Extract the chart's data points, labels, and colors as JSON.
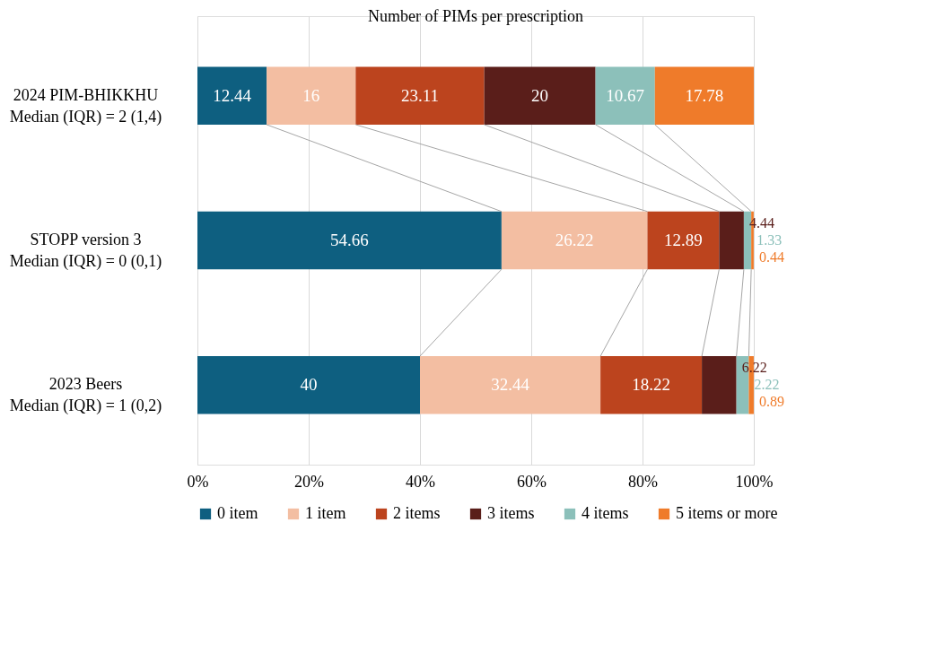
{
  "chart_data": {
    "type": "bar",
    "orientation": "horizontal",
    "stacked": true,
    "title": "Number of PIMs per prescription",
    "categories": [
      "2024 PIM-BHIKKHU\nMedian (IQR) = 2 (1,4)",
      "STOPP version 3\nMedian (IQR) = 0 (0,1)",
      "2023 Beers\nMedian (IQR) = 1 (0,2)"
    ],
    "series": [
      {
        "name": "0 item",
        "color": "#0e5f80",
        "values": [
          12.44,
          54.66,
          40
        ]
      },
      {
        "name": "1 item",
        "color": "#f3bea2",
        "values": [
          16,
          26.22,
          32.44
        ]
      },
      {
        "name": "2 items",
        "color": "#bc441e",
        "values": [
          23.11,
          12.89,
          18.22
        ]
      },
      {
        "name": "3 items",
        "color": "#5a1e1a",
        "values": [
          20,
          4.44,
          6.22
        ]
      },
      {
        "name": "4 items",
        "color": "#8cc0ba",
        "values": [
          10.67,
          1.33,
          2.22
        ]
      },
      {
        "name": "5 items or more",
        "color": "#ef7b2a",
        "values": [
          17.78,
          0.44,
          0.89
        ]
      }
    ],
    "xlim": [
      0,
      100
    ],
    "xticks": [
      {
        "value": 0,
        "label": "0%"
      },
      {
        "value": 20,
        "label": "20%"
      },
      {
        "value": 40,
        "label": "40%"
      },
      {
        "value": 60,
        "label": "60%"
      },
      {
        "value": 80,
        "label": "80%"
      },
      {
        "value": 100,
        "label": "100%"
      }
    ],
    "grid": "x",
    "legend": "bottom",
    "data_labels": true
  }
}
